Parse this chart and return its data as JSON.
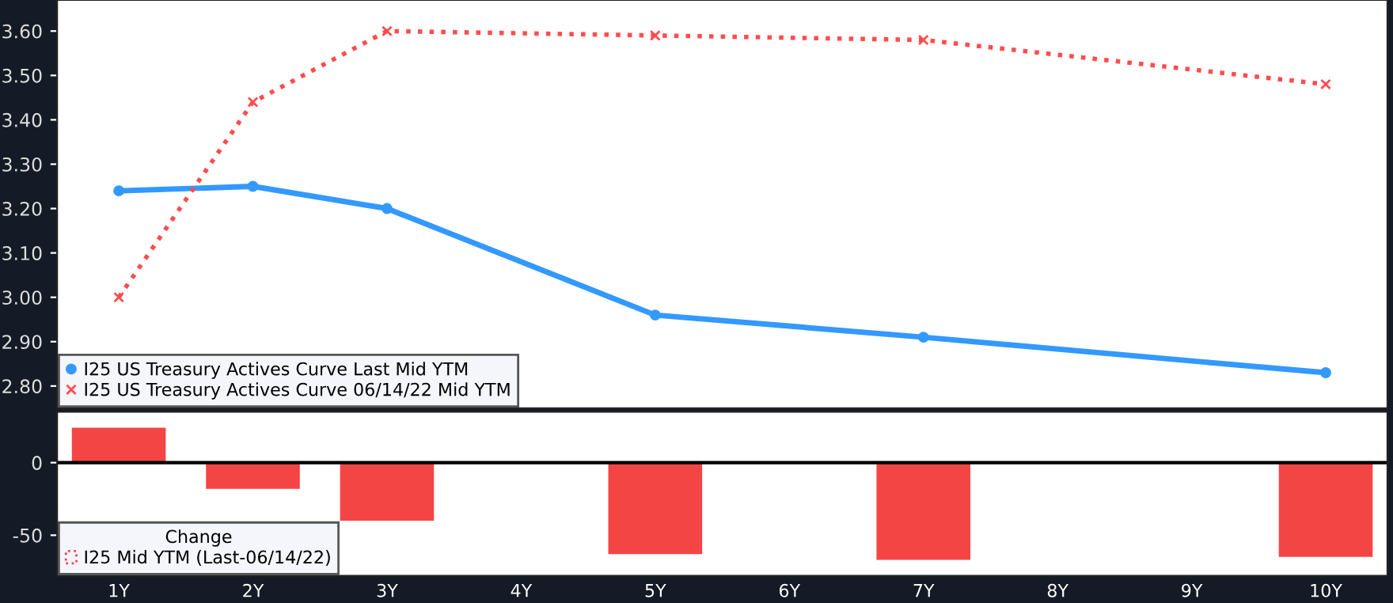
{
  "chart_data": [
    {
      "type": "line",
      "categories": [
        null,
        null,
        null,
        null,
        null,
        null,
        null,
        null,
        null,
        null
      ],
      "series": [
        {
          "name": "I25 US Treasury Actives Curve Last Mid YTM",
          "color": "#3399ff",
          "marker": "circle",
          "line_style": "solid",
          "values": [
            3.24,
            3.25,
            3.2,
            null,
            2.96,
            null,
            2.91,
            null,
            null,
            2.83
          ]
        },
        {
          "name": "I25 US Treasury Actives Curve 06/14/22 Mid YTM",
          "color": "#ff4d4d",
          "marker": "cross",
          "line_style": "dotted",
          "values": [
            3.0,
            3.44,
            3.6,
            null,
            3.59,
            null,
            3.58,
            null,
            null,
            3.48
          ]
        }
      ],
      "ylim": [
        2.75,
        3.67
      ],
      "yticks": [
        {
          "value": 2.8,
          "label": "2.80"
        },
        {
          "value": 2.9,
          "label": "2.90"
        },
        {
          "value": 3.0,
          "label": "3.00"
        },
        {
          "value": 3.1,
          "label": "3.10"
        },
        {
          "value": 3.2,
          "label": "3.20"
        },
        {
          "value": 3.3,
          "label": "3.30"
        },
        {
          "value": 3.4,
          "label": "3.40"
        },
        {
          "value": 3.5,
          "label": "3.50"
        },
        {
          "value": 3.6,
          "label": "3.60"
        }
      ],
      "tick_labels": "y",
      "legend": "bottom left"
    },
    {
      "type": "bar",
      "categories": [
        "1Y",
        "2Y",
        "3Y",
        "4Y",
        "5Y",
        "6Y",
        "7Y",
        "8Y",
        "9Y",
        "10Y"
      ],
      "legend_title": "Change",
      "series": [
        {
          "name": "I25 Mid YTM (Last-06/14/22)",
          "color": "#f44545",
          "values": [
            24,
            -18,
            -40,
            null,
            -63,
            null,
            -67,
            null,
            null,
            -65
          ]
        }
      ],
      "ylim": [
        -78,
        35
      ],
      "yticks": [
        -50,
        0
      ],
      "legend": "bottom left",
      "ref_lines": [
        {
          "axis": "y",
          "value": 0,
          "color": "#000000"
        }
      ]
    }
  ]
}
